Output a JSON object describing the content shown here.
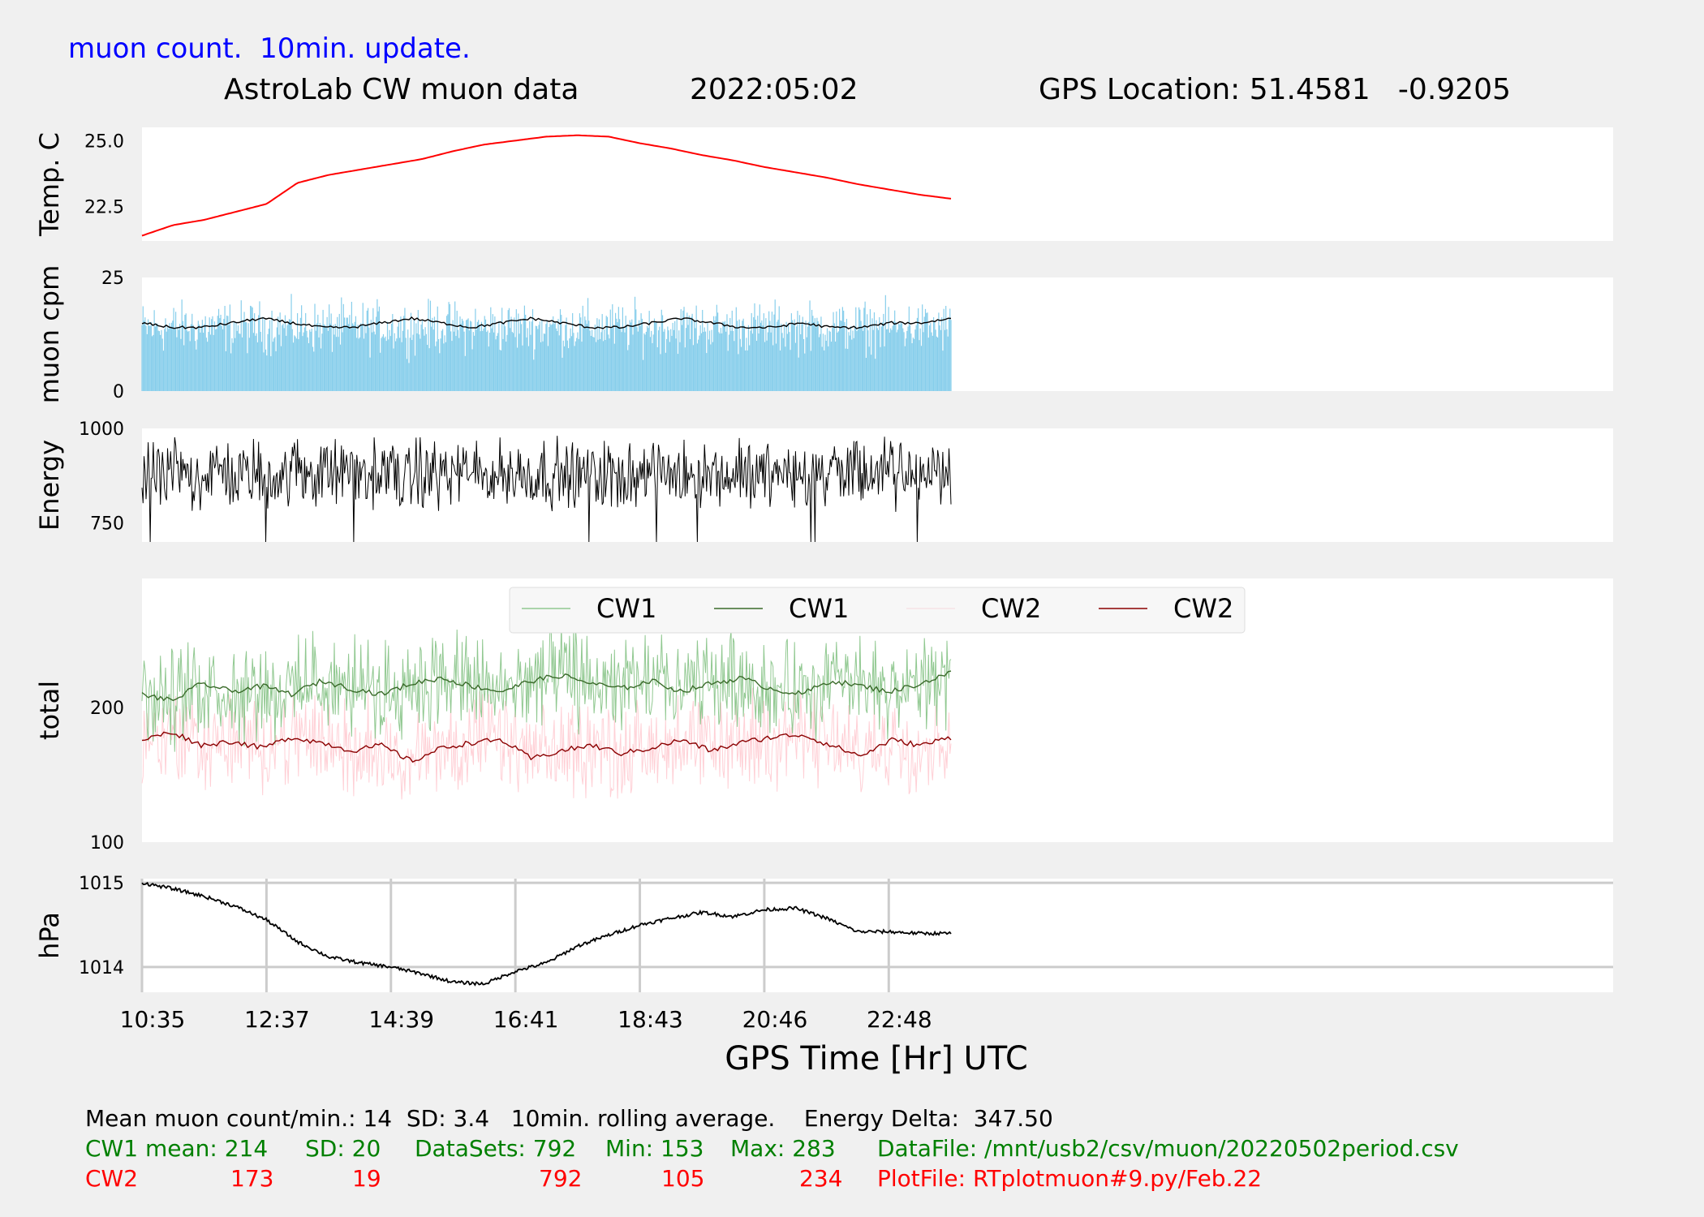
{
  "header": {
    "update_note": "muon count.  10min. update.",
    "title": "AstroLab CW muon data",
    "date": "2022:05:02",
    "gps_location": "GPS Location: 51.4581   -0.9205"
  },
  "colors": {
    "background": "#f0f0f0",
    "panel": "#ffffff",
    "temp": "#ff0000",
    "muon_bars": "#87ceeb",
    "black": "#000000",
    "cw1_raw": "#90c890",
    "cw1_avg": "#3a6b2a",
    "cw2_raw": "#ffd0d6",
    "cw2_avg": "#8b0000",
    "grid": "#cccccc",
    "footer_green": "#008000",
    "footer_red": "#ff0000",
    "note_blue": "#0000ff"
  },
  "chart_data": [
    {
      "type": "line",
      "ylabel": "Temp. C",
      "yticks": [
        "22.5",
        "25.0"
      ],
      "ylim": [
        21.2,
        25.5
      ],
      "x": [
        0,
        0.5,
        1.0,
        1.5,
        2.0,
        2.5,
        3.0,
        3.5,
        4.0,
        4.5,
        5.0,
        5.5,
        6.0,
        6.5,
        7.0,
        7.5,
        8.0,
        8.5,
        9.0,
        9.5,
        10.0,
        10.5,
        11.0,
        11.5,
        12.0,
        12.5,
        13.0
      ],
      "values": [
        21.4,
        21.8,
        22.0,
        22.3,
        22.6,
        23.4,
        23.7,
        23.9,
        24.1,
        24.3,
        24.6,
        24.85,
        25.0,
        25.15,
        25.2,
        25.15,
        24.9,
        24.7,
        24.45,
        24.25,
        24.0,
        23.8,
        23.6,
        23.35,
        23.15,
        22.95,
        22.8
      ]
    },
    {
      "type": "bar",
      "ylabel": "muon cpm",
      "yticks": [
        "0",
        "25"
      ],
      "ylim": [
        0,
        25
      ],
      "summary": {
        "mean": 14,
        "sd": 3.4,
        "rolling_average": "10min"
      },
      "series": [
        {
          "name": "rolling average",
          "values": [
            15,
            14,
            14,
            15,
            16,
            15,
            14,
            14,
            15,
            16,
            15,
            14,
            15,
            16,
            15,
            14,
            14,
            15,
            16,
            15,
            14,
            14,
            15,
            14,
            14,
            15,
            15,
            16
          ]
        }
      ]
    },
    {
      "type": "line",
      "ylabel": "Energy",
      "yticks": [
        "750",
        "1000"
      ],
      "ylim": [
        700,
        1000
      ],
      "energy_delta": 347.5,
      "range": [
        650,
        997.5
      ]
    },
    {
      "type": "line",
      "ylabel": "total",
      "yticks": [
        "100",
        "200"
      ],
      "ylim": [
        100,
        296
      ],
      "legend": [
        "CW1",
        "CW1",
        "CW2",
        "CW2"
      ],
      "legend_position": "top-center",
      "series": [
        {
          "name": "CW1",
          "mean": 214,
          "sd": 20,
          "datasets": 792,
          "min": 153,
          "max": 283,
          "values": [
            210,
            205,
            218,
            212,
            216,
            210,
            220,
            214,
            210,
            218,
            222,
            216,
            212,
            220,
            224,
            218,
            214,
            220,
            212,
            218,
            222,
            214,
            210,
            220,
            216,
            212,
            218,
            226
          ]
        },
        {
          "name": "CW2",
          "mean": 173,
          "sd": 19,
          "datasets": 792,
          "min": 105,
          "max": 234,
          "values": [
            176,
            182,
            172,
            175,
            170,
            178,
            174,
            168,
            172,
            160,
            170,
            174,
            176,
            162,
            168,
            172,
            166,
            170,
            176,
            168,
            174,
            178,
            180,
            172,
            164,
            176,
            172,
            178
          ]
        }
      ]
    },
    {
      "type": "line",
      "ylabel": "hPa",
      "yticks": [
        "1014",
        "1015"
      ],
      "ylim": [
        1013.7,
        1015.05
      ],
      "grid": true,
      "x_ticks": [
        "10:35",
        "12:37",
        "14:39",
        "16:41",
        "18:43",
        "20:46",
        "22:48"
      ],
      "xlabel": "GPS Time  [Hr] UTC",
      "x": [
        0,
        0.5,
        1.0,
        1.5,
        2.0,
        2.5,
        3.0,
        3.5,
        4.0,
        4.5,
        5.0,
        5.5,
        6.0,
        6.5,
        7.0,
        7.5,
        8.0,
        8.5,
        9.0,
        9.5,
        10.0,
        10.5,
        11.0,
        11.5,
        12.0,
        12.5,
        13.0
      ],
      "values": [
        1015.0,
        1014.93,
        1014.84,
        1014.72,
        1014.56,
        1014.3,
        1014.12,
        1014.05,
        1014.0,
        1013.92,
        1013.82,
        1013.8,
        1013.95,
        1014.05,
        1014.25,
        1014.38,
        1014.5,
        1014.58,
        1014.65,
        1014.6,
        1014.68,
        1014.7,
        1014.58,
        1014.42,
        1014.42,
        1014.4,
        1014.4
      ]
    }
  ],
  "footer": {
    "line1": "Mean muon count/min.: 14  SD: 3.4   10min. rolling average.    Energy Delta:  347.50",
    "cw1": {
      "label": "CW1 mean: 214",
      "sd": "SD: 20",
      "datasets": "DataSets: 792",
      "min": "Min: 153",
      "max": "Max: 283",
      "file": "DataFile: /mnt/usb2/csv/muon/20220502period.csv"
    },
    "cw2": {
      "label": "CW2",
      "mean": "173",
      "sd": "19",
      "datasets": "792",
      "min": "105",
      "max": "234",
      "file": "PlotFile: RTplotmuon#9.py/Feb.22"
    }
  }
}
